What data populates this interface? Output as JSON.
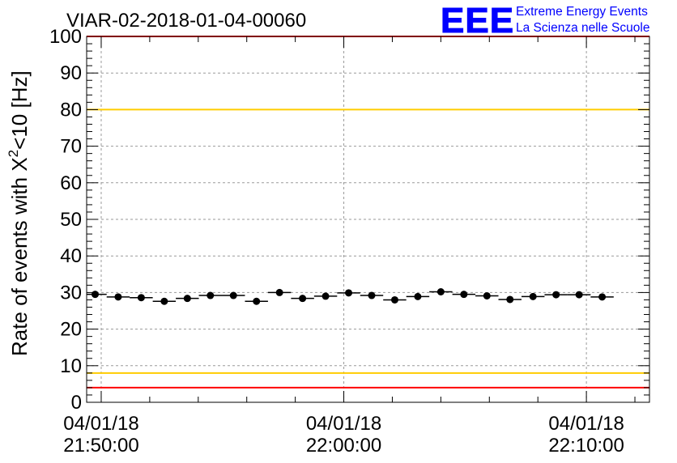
{
  "chart_data": {
    "type": "scatter",
    "title": "VIAR-02-2018-01-04-00060",
    "ylabel": "Rate of events with χ²<10 [Hz]",
    "ylabel_parts": {
      "prefix": "Rate of events with X",
      "superscript": "2",
      "suffix": "<10 [Hz]"
    },
    "xlabel": "",
    "xlim_minutes_after_2150": [
      -0.6,
      22.6
    ],
    "ylim": [
      0,
      100
    ],
    "y_ticks": [
      0,
      10,
      20,
      30,
      40,
      50,
      60,
      70,
      80,
      90,
      100
    ],
    "x_ticks": [
      {
        "date": "04/01/18",
        "time": "21:50:00",
        "minute": 0
      },
      {
        "date": "04/01/18",
        "time": "22:00:00",
        "minute": 10
      },
      {
        "date": "04/01/18",
        "time": "22:10:00",
        "minute": 20
      }
    ],
    "grid": true,
    "bin_width_minutes": 0.95,
    "series": [
      {
        "points": [
          [
            -0.25,
            29.5
          ],
          [
            0.7,
            28.8
          ],
          [
            1.65,
            28.6
          ],
          [
            2.6,
            27.6
          ],
          [
            3.55,
            28.4
          ],
          [
            4.5,
            29.2
          ],
          [
            5.45,
            29.2
          ],
          [
            6.4,
            27.6
          ],
          [
            7.35,
            30.0
          ],
          [
            8.3,
            28.4
          ],
          [
            9.25,
            29.0
          ],
          [
            10.2,
            29.9
          ],
          [
            11.15,
            29.2
          ],
          [
            12.1,
            28.0
          ],
          [
            13.05,
            28.9
          ],
          [
            14.0,
            30.2
          ],
          [
            14.95,
            29.5
          ],
          [
            15.9,
            29.1
          ],
          [
            16.85,
            28.1
          ],
          [
            17.8,
            28.9
          ],
          [
            18.75,
            29.4
          ],
          [
            19.7,
            29.4
          ],
          [
            20.65,
            28.8
          ]
        ],
        "color": "#000000"
      }
    ],
    "reference_lines": [
      {
        "y": 100,
        "color": "#ff0000"
      },
      {
        "y": 80,
        "color": "#ffcc00"
      },
      {
        "y": 8,
        "color": "#ffcc00"
      },
      {
        "y": 4,
        "color": "#ff0000"
      }
    ]
  },
  "logo": {
    "text": "EEE",
    "line1": "Extreme Energy Events",
    "line2": "La Scienza nelle Scuole",
    "color": "#0000ff"
  }
}
